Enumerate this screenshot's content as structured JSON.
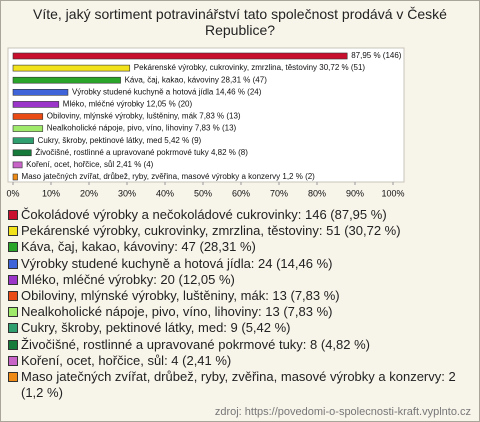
{
  "chart_data": {
    "type": "bar",
    "orientation": "horizontal",
    "title": "Víte, jaký sortiment potravinářství tato společnost prodává v České Republice?",
    "values": [
      87.95,
      30.72,
      28.31,
      14.46,
      12.05,
      7.83,
      7.83,
      5.42,
      4.82,
      2.41,
      1.2
    ],
    "value_labels": [
      "87,95 % (146)",
      "Pekárenské výrobky, cukrovinky, zmrzlina, těstoviny 30,72 % (51)",
      "Káva, čaj, kakao, kávoviny 28,31 % (47)",
      "Výrobky studené kuchyně a hotová jídla 14,46 % (24)",
      "Mléko, mléčné výrobky 12,05 % (20)",
      "Obiloviny, mlýnské výrobky, luštěniny, mák 7,83 % (13)",
      "Nealkoholické nápoje, pivo, víno, lihoviny 7,83 % (13)",
      "Cukry, škroby, pektinové látky, med 5,42 % (9)",
      "Živočišné, rostlinné a upravované pokrmové tuky 4,82 % (8)",
      "Koření, ocet, hořčice, sůl 2,41 % (4)",
      "Maso jatečných zvířat, drůbež, ryby, zvěřina, masové výrobky a konzervy 1,2 % (2)"
    ],
    "legend": [
      "Čokoládové výrobky a nečokoládové cukrovinky: 146 (87,95 %)",
      "Pekárenské výrobky, cukrovinky, zmrzlina, těstoviny: 51 (30,72 %)",
      "Káva, čaj, kakao, kávoviny: 47 (28,31 %)",
      "Výrobky studené kuchyně a hotová jídla: 24 (14,46 %)",
      "Mléko, mléčné výrobky: 20 (12,05 %)",
      "Obiloviny, mlýnské výrobky, luštěniny, mák: 13 (7,83 %)",
      "Nealkoholické nápoje, pivo, víno, lihoviny: 13 (7,83 %)",
      "Cukry, škroby, pektinové látky, med: 9 (5,42 %)",
      "Živočišné, rostlinné a upravované pokrmové tuky: 8 (4,82 %)",
      "Koření, ocet, hořčice, sůl: 4 (2,41 %)",
      "Maso jatečných zvířat, drůbež, ryby, zvěřina, masové výrobky a konzervy: 2 (1,2 %)"
    ],
    "colors": [
      "#c8102e",
      "#f2e21c",
      "#2aa52a",
      "#3f63d8",
      "#9b34c8",
      "#ea4a14",
      "#9fea6a",
      "#2f9f6f",
      "#157a3a",
      "#c864c8",
      "#ee8a16"
    ],
    "xlim": [
      0,
      100
    ],
    "xticks": [
      {
        "value": 0,
        "label": "0%"
      },
      {
        "value": 10,
        "label": "10%"
      },
      {
        "value": 20,
        "label": "20%"
      },
      {
        "value": 30,
        "label": "30%"
      },
      {
        "value": 40,
        "label": "40%"
      },
      {
        "value": 50,
        "label": "50%"
      },
      {
        "value": 60,
        "label": "60%"
      },
      {
        "value": 70,
        "label": "70%"
      },
      {
        "value": 80,
        "label": "80%"
      },
      {
        "value": 90,
        "label": "90%"
      },
      {
        "value": 100,
        "label": "100%"
      }
    ],
    "grid": false,
    "source": "zdroj: https://povedomi-o-spolecnosti-kraft.vyplnto.cz"
  }
}
